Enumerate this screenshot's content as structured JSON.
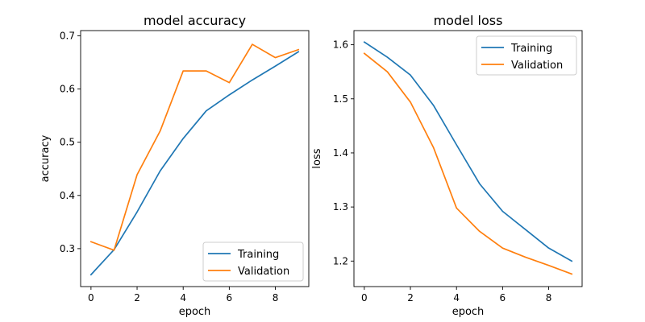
{
  "chart_data": [
    {
      "type": "line",
      "title": "model accuracy",
      "xlabel": "epoch",
      "ylabel": "accuracy",
      "xlim": [
        -0.45,
        9.45
      ],
      "ylim": [
        0.2287,
        0.7098
      ],
      "xticks": [
        "0",
        "2",
        "4",
        "6",
        "8"
      ],
      "xtick_values": [
        0,
        2,
        4,
        6,
        8
      ],
      "yticks": [
        "0.3",
        "0.4",
        "0.5",
        "0.6",
        "0.7"
      ],
      "ytick_values": [
        0.3,
        0.4,
        0.5,
        0.6,
        0.7
      ],
      "legend_placement": "lower-right",
      "grid": false,
      "x": [
        0,
        1,
        2,
        3,
        4,
        5,
        6,
        7,
        8,
        9
      ],
      "series": [
        {
          "name": "Training",
          "color": "#1f77b4",
          "values": [
            0.251,
            0.298,
            0.369,
            0.446,
            0.507,
            0.559,
            0.589,
            0.617,
            0.643,
            0.67
          ]
        },
        {
          "name": "Validation",
          "color": "#ff7f0e",
          "values": [
            0.313,
            0.297,
            0.439,
            0.521,
            0.634,
            0.634,
            0.612,
            0.684,
            0.659,
            0.674
          ]
        }
      ]
    },
    {
      "type": "line",
      "title": "model loss",
      "xlabel": "epoch",
      "ylabel": "loss",
      "xlim": [
        -0.45,
        9.45
      ],
      "ylim": [
        1.1528,
        1.6262
      ],
      "xticks": [
        "0",
        "2",
        "4",
        "6",
        "8"
      ],
      "xtick_values": [
        0,
        2,
        4,
        6,
        8
      ],
      "yticks": [
        "1.2",
        "1.3",
        "1.4",
        "1.5",
        "1.6"
      ],
      "ytick_values": [
        1.2,
        1.3,
        1.4,
        1.5,
        1.6
      ],
      "legend_placement": "upper-right",
      "grid": false,
      "x": [
        0,
        1,
        2,
        3,
        4,
        5,
        6,
        7,
        8,
        9
      ],
      "series": [
        {
          "name": "Training",
          "color": "#1f77b4",
          "values": [
            1.605,
            1.577,
            1.544,
            1.488,
            1.415,
            1.343,
            1.292,
            1.258,
            1.224,
            1.2
          ]
        },
        {
          "name": "Validation",
          "color": "#ff7f0e",
          "values": [
            1.584,
            1.55,
            1.494,
            1.41,
            1.298,
            1.255,
            1.224,
            1.207,
            1.192,
            1.176
          ]
        }
      ]
    }
  ]
}
